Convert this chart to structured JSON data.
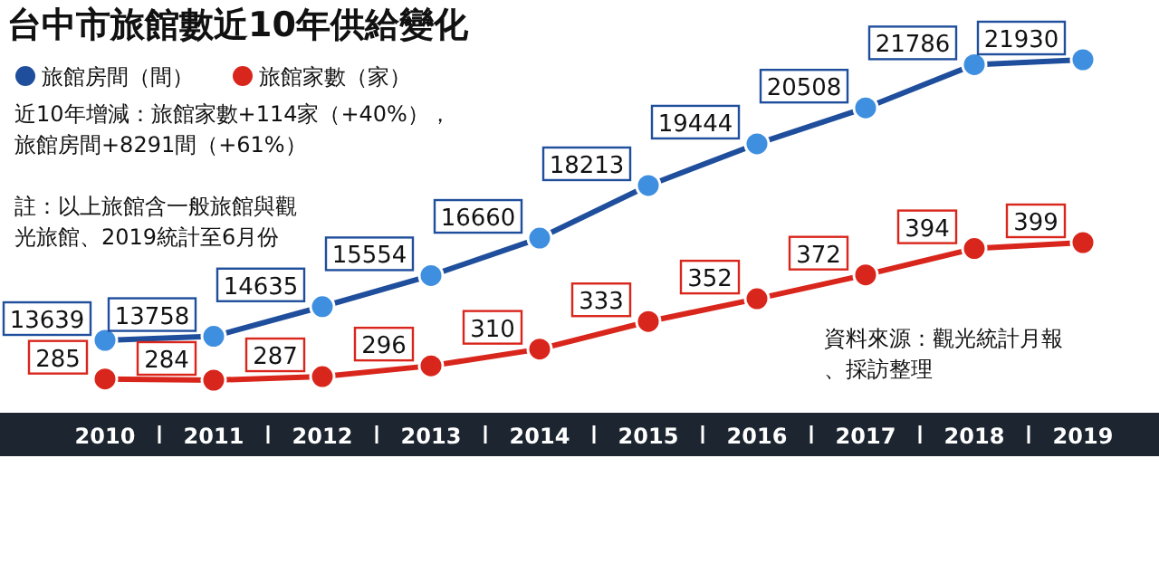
{
  "chart_data": [
    {
      "type": "line",
      "title": "台中市旅館數近10年供給變化",
      "categories": [
        "2010",
        "2011",
        "2012",
        "2013",
        "2014",
        "2015",
        "2016",
        "2017",
        "2018",
        "2019"
      ],
      "series": [
        {
          "name": "旅館房間（間）",
          "color": "#1f4e9c",
          "values": [
            13639,
            13758,
            14635,
            15554,
            16660,
            18213,
            19444,
            20508,
            21786,
            21930
          ]
        }
      ],
      "data_labels": true,
      "marker": "circle",
      "legend": "top left",
      "annotations": [
        "近10年增減：旅館家數+114家（+40%），旅館房間+8291間（+61%）",
        "註：以上旅館含一般旅館與觀光旅館、2019統計至6月份",
        "資料來源：觀光統計月報、採訪整理"
      ]
    },
    {
      "type": "line",
      "categories": [
        "2010",
        "2011",
        "2012",
        "2013",
        "2014",
        "2015",
        "2016",
        "2017",
        "2018",
        "2019"
      ],
      "series": [
        {
          "name": "旅館家數（家）",
          "color": "#d9261c",
          "values": [
            285,
            284,
            287,
            296,
            310,
            333,
            352,
            372,
            394,
            399
          ]
        }
      ],
      "data_labels": true,
      "marker": "circle",
      "legend": "top left",
      "tick_labels": false
    }
  ]
}
